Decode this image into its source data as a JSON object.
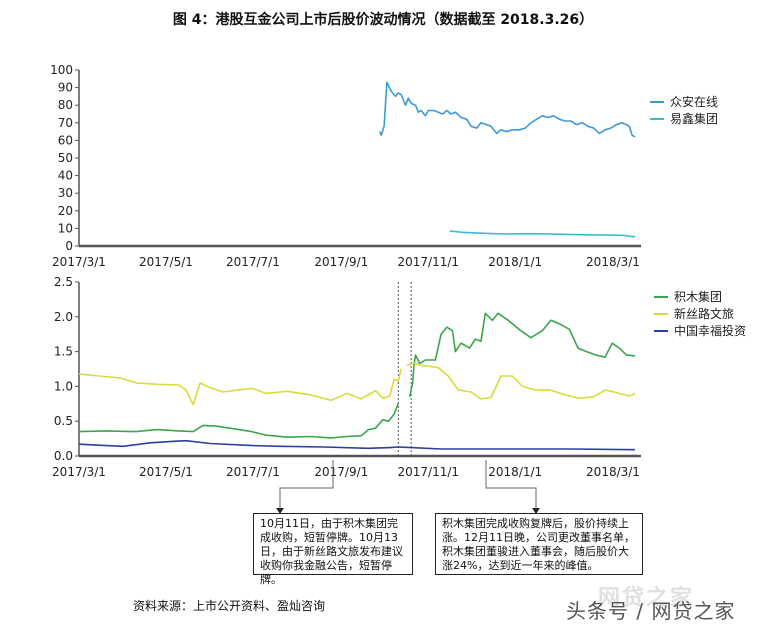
{
  "title": "图 4：港股互金公司上市后股价波动情况（数据截至 2018.3.26）",
  "source": "资料来源：上市公开资料、盈灿咨询",
  "watermark": "网贷之家",
  "caption": "头条号 / 网贷之家",
  "notes": [
    {
      "text": "10月11日，由于积木集团完成收购，短暂停牌。10月13日，由于新丝路文旅发布建议收购你我金融公告，短暂停牌。"
    },
    {
      "text": "积木集团完成收购复牌后，股价持续上涨。12月11日晚，公司更改董事名单，积木集团董骏进入董事会，随后股价大涨24%，达到近一年来的峰值。"
    }
  ],
  "chart_data": [
    {
      "type": "line",
      "title": "",
      "xlabel": "",
      "ylabel": "",
      "ylim": [
        0,
        100
      ],
      "yticks": [
        0,
        10,
        20,
        30,
        40,
        50,
        60,
        70,
        80,
        90,
        100
      ],
      "xticks": [
        "2017/3/1",
        "2017/5/1",
        "2017/7/1",
        "2017/9/1",
        "2017/11/1",
        "2018/1/1",
        "2018/3/1"
      ],
      "legend_position": "right",
      "grid": false,
      "series": [
        {
          "name": "众安在线",
          "color": "#3d9ad8",
          "points": [
            [
              "2017-09-28",
              65
            ],
            [
              "2017-09-29",
              63
            ],
            [
              "2017-10-01",
              68
            ],
            [
              "2017-10-03",
              93
            ],
            [
              "2017-10-06",
              88
            ],
            [
              "2017-10-09",
              85
            ],
            [
              "2017-10-11",
              87
            ],
            [
              "2017-10-13",
              86
            ],
            [
              "2017-10-16",
              80
            ],
            [
              "2017-10-18",
              84
            ],
            [
              "2017-10-20",
              81
            ],
            [
              "2017-10-23",
              80
            ],
            [
              "2017-10-25",
              76
            ],
            [
              "2017-10-27",
              77
            ],
            [
              "2017-10-30",
              74
            ],
            [
              "2017-11-01",
              77
            ],
            [
              "2017-11-05",
              77
            ],
            [
              "2017-11-08",
              76
            ],
            [
              "2017-11-11",
              75
            ],
            [
              "2017-11-14",
              77
            ],
            [
              "2017-11-17",
              75
            ],
            [
              "2017-11-20",
              76
            ],
            [
              "2017-11-24",
              73
            ],
            [
              "2017-11-28",
              72
            ],
            [
              "2017-12-01",
              68
            ],
            [
              "2017-12-05",
              67
            ],
            [
              "2017-12-08",
              70
            ],
            [
              "2017-12-12",
              69
            ],
            [
              "2017-12-15",
              68
            ],
            [
              "2017-12-19",
              64
            ],
            [
              "2017-12-22",
              66
            ],
            [
              "2017-12-26",
              65
            ],
            [
              "2017-12-30",
              66
            ],
            [
              "2018-01-04",
              66
            ],
            [
              "2018-01-08",
              67
            ],
            [
              "2018-01-12",
              70
            ],
            [
              "2018-01-16",
              72
            ],
            [
              "2018-01-20",
              74
            ],
            [
              "2018-01-24",
              73
            ],
            [
              "2018-01-28",
              74
            ],
            [
              "2018-02-01",
              72
            ],
            [
              "2018-02-05",
              71
            ],
            [
              "2018-02-09",
              71
            ],
            [
              "2018-02-13",
              69
            ],
            [
              "2018-02-17",
              70
            ],
            [
              "2018-02-21",
              68
            ],
            [
              "2018-02-25",
              67
            ],
            [
              "2018-03-01",
              64
            ],
            [
              "2018-03-05",
              66
            ],
            [
              "2018-03-09",
              67
            ],
            [
              "2018-03-13",
              69
            ],
            [
              "2018-03-17",
              70
            ],
            [
              "2018-03-20",
              69
            ],
            [
              "2018-03-22",
              68
            ],
            [
              "2018-03-24",
              63
            ],
            [
              "2018-03-26",
              62
            ]
          ]
        },
        {
          "name": "易鑫集团",
          "color": "#35c0c8",
          "points": [
            [
              "2017-11-16",
              8.5
            ],
            [
              "2017-11-25",
              7.8
            ],
            [
              "2017-12-10",
              7.2
            ],
            [
              "2017-12-25",
              6.8
            ],
            [
              "2018-01-10",
              7.0
            ],
            [
              "2018-01-25",
              6.9
            ],
            [
              "2018-02-10",
              6.5
            ],
            [
              "2018-02-25",
              6.3
            ],
            [
              "2018-03-10",
              6.2
            ],
            [
              "2018-03-18",
              6.0
            ],
            [
              "2018-03-26",
              5.2
            ]
          ]
        }
      ]
    },
    {
      "type": "line",
      "title": "",
      "xlabel": "",
      "ylabel": "",
      "ylim": [
        0,
        2.5
      ],
      "yticks": [
        0.0,
        0.5,
        1.0,
        1.5,
        2.0,
        2.5
      ],
      "xticks": [
        "2017/3/1",
        "2017/5/1",
        "2017/7/1",
        "2017/9/1",
        "2017/11/1",
        "2018/1/1",
        "2018/3/1"
      ],
      "legend_position": "right",
      "grid": false,
      "annotations": [
        {
          "type": "vline",
          "date": "2017-10-11",
          "style": "dotted"
        },
        {
          "type": "vline",
          "date": "2017-10-20",
          "style": "dotted"
        }
      ],
      "series": [
        {
          "name": "积木集团",
          "color": "#3aa64a",
          "segments": [
            [
              [
                "2017-03-01",
                0.35
              ],
              [
                "2017-03-20",
                0.36
              ],
              [
                "2017-04-10",
                0.35
              ],
              [
                "2017-04-25",
                0.38
              ],
              [
                "2017-05-10",
                0.36
              ],
              [
                "2017-05-20",
                0.35
              ],
              [
                "2017-05-27",
                0.44
              ],
              [
                "2017-06-05",
                0.43
              ],
              [
                "2017-06-15",
                0.4
              ],
              [
                "2017-06-30",
                0.35
              ],
              [
                "2017-07-10",
                0.3
              ],
              [
                "2017-07-25",
                0.27
              ],
              [
                "2017-08-10",
                0.28
              ],
              [
                "2017-08-25",
                0.26
              ],
              [
                "2017-09-05",
                0.28
              ],
              [
                "2017-09-15",
                0.29
              ],
              [
                "2017-09-20",
                0.38
              ],
              [
                "2017-09-25",
                0.4
              ],
              [
                "2017-09-30",
                0.52
              ],
              [
                "2017-10-04",
                0.5
              ],
              [
                "2017-10-08",
                0.6
              ],
              [
                "2017-10-11",
                0.76
              ]
            ],
            [
              [
                "2017-10-19",
                0.85
              ],
              [
                "2017-10-21",
                1.05
              ],
              [
                "2017-10-22",
                1.3
              ],
              [
                "2017-10-23",
                1.45
              ],
              [
                "2017-10-26",
                1.33
              ],
              [
                "2017-10-30",
                1.38
              ],
              [
                "2017-11-06",
                1.38
              ],
              [
                "2017-11-10",
                1.75
              ],
              [
                "2017-11-14",
                1.85
              ],
              [
                "2017-11-18",
                1.8
              ],
              [
                "2017-11-20",
                1.5
              ],
              [
                "2017-11-24",
                1.62
              ],
              [
                "2017-11-30",
                1.55
              ],
              [
                "2017-12-04",
                1.68
              ],
              [
                "2017-12-08",
                1.65
              ],
              [
                "2017-12-11",
                2.05
              ],
              [
                "2017-12-16",
                1.95
              ],
              [
                "2017-12-20",
                2.05
              ],
              [
                "2017-12-27",
                1.95
              ],
              [
                "2018-01-05",
                1.8
              ],
              [
                "2018-01-12",
                1.7
              ],
              [
                "2018-01-20",
                1.8
              ],
              [
                "2018-01-26",
                1.95
              ],
              [
                "2018-02-01",
                1.9
              ],
              [
                "2018-02-08",
                1.82
              ],
              [
                "2018-02-14",
                1.55
              ],
              [
                "2018-02-20",
                1.5
              ],
              [
                "2018-02-27",
                1.45
              ],
              [
                "2018-03-05",
                1.42
              ],
              [
                "2018-03-10",
                1.62
              ],
              [
                "2018-03-15",
                1.55
              ],
              [
                "2018-03-20",
                1.45
              ],
              [
                "2018-03-26",
                1.44
              ]
            ]
          ]
        },
        {
          "name": "新丝路文旅",
          "color": "#d8dc3a",
          "segments": [
            [
              [
                "2017-03-01",
                1.18
              ],
              [
                "2017-03-15",
                1.15
              ],
              [
                "2017-03-30",
                1.12
              ],
              [
                "2017-04-10",
                1.05
              ],
              [
                "2017-04-25",
                1.03
              ],
              [
                "2017-05-10",
                1.02
              ],
              [
                "2017-05-15",
                0.95
              ],
              [
                "2017-05-20",
                0.74
              ],
              [
                "2017-05-25",
                1.05
              ],
              [
                "2017-06-01",
                0.98
              ],
              [
                "2017-06-10",
                0.92
              ],
              [
                "2017-06-20",
                0.95
              ],
              [
                "2017-07-01",
                0.97
              ],
              [
                "2017-07-10",
                0.9
              ],
              [
                "2017-07-25",
                0.93
              ],
              [
                "2017-08-10",
                0.88
              ],
              [
                "2017-08-25",
                0.8
              ],
              [
                "2017-09-05",
                0.9
              ],
              [
                "2017-09-15",
                0.82
              ],
              [
                "2017-09-25",
                0.94
              ],
              [
                "2017-09-30",
                0.83
              ],
              [
                "2017-10-05",
                0.86
              ],
              [
                "2017-10-08",
                1.1
              ],
              [
                "2017-10-11",
                1.08
              ],
              [
                "2017-10-13",
                1.25
              ]
            ],
            [
              [
                "2017-10-17",
                1.3
              ],
              [
                "2017-10-22",
                1.33
              ],
              [
                "2017-10-28",
                1.3
              ],
              [
                "2017-11-08",
                1.27
              ],
              [
                "2017-11-15",
                1.15
              ],
              [
                "2017-11-22",
                0.95
              ],
              [
                "2017-12-01",
                0.92
              ],
              [
                "2017-12-08",
                0.82
              ],
              [
                "2017-12-15",
                0.84
              ],
              [
                "2017-12-22",
                1.15
              ],
              [
                "2017-12-30",
                1.15
              ],
              [
                "2018-01-06",
                1.0
              ],
              [
                "2018-01-15",
                0.95
              ],
              [
                "2018-01-25",
                0.95
              ],
              [
                "2018-02-05",
                0.88
              ],
              [
                "2018-02-15",
                0.83
              ],
              [
                "2018-02-25",
                0.85
              ],
              [
                "2018-03-05",
                0.95
              ],
              [
                "2018-03-15",
                0.9
              ],
              [
                "2018-03-22",
                0.86
              ],
              [
                "2018-03-26",
                0.9
              ]
            ]
          ]
        },
        {
          "name": "中国幸福投资",
          "color": "#2d3f9c",
          "segments": [
            [
              [
                "2017-03-01",
                0.17
              ],
              [
                "2017-03-20",
                0.15
              ],
              [
                "2017-04-01",
                0.14
              ],
              [
                "2017-04-20",
                0.19
              ],
              [
                "2017-05-05",
                0.21
              ],
              [
                "2017-05-15",
                0.22
              ],
              [
                "2017-06-01",
                0.18
              ],
              [
                "2017-07-01",
                0.15
              ],
              [
                "2017-07-20",
                0.14
              ],
              [
                "2017-08-20",
                0.13
              ],
              [
                "2017-09-20",
                0.11
              ],
              [
                "2017-10-05",
                0.12
              ],
              [
                "2017-10-11",
                0.13
              ],
              [
                "2017-10-20",
                0.12
              ],
              [
                "2017-11-10",
                0.1
              ],
              [
                "2017-12-10",
                0.1
              ],
              [
                "2018-01-10",
                0.1
              ],
              [
                "2018-02-10",
                0.1
              ],
              [
                "2018-03-26",
                0.09
              ]
            ]
          ]
        }
      ]
    }
  ]
}
